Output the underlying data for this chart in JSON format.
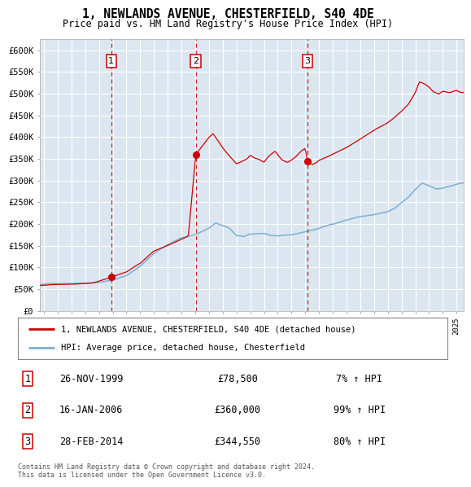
{
  "title": "1, NEWLANDS AVENUE, CHESTERFIELD, S40 4DE",
  "subtitle": "Price paid vs. HM Land Registry's House Price Index (HPI)",
  "ylabel_ticks": [
    "£0",
    "£50K",
    "£100K",
    "£150K",
    "£200K",
    "£250K",
    "£300K",
    "£350K",
    "£400K",
    "£450K",
    "£500K",
    "£550K",
    "£600K"
  ],
  "ytick_values": [
    0,
    50000,
    100000,
    150000,
    200000,
    250000,
    300000,
    350000,
    400000,
    450000,
    500000,
    550000,
    600000
  ],
  "ylim": [
    0,
    625000
  ],
  "xlim_start": 1994.7,
  "xlim_end": 2025.5,
  "plot_bg_color": "#dce6f1",
  "grid_color": "#ffffff",
  "hpi_line_color": "#7bafd4",
  "price_line_color": "#cc0000",
  "vline_color": "#cc0000",
  "marker_color": "#cc0000",
  "purchases": [
    {
      "date_num": 1999.9,
      "price": 78500,
      "label": "1"
    },
    {
      "date_num": 2006.04,
      "price": 360000,
      "label": "2"
    },
    {
      "date_num": 2014.16,
      "price": 344550,
      "label": "3"
    }
  ],
  "legend_line1": "1, NEWLANDS AVENUE, CHESTERFIELD, S40 4DE (detached house)",
  "legend_line2": "HPI: Average price, detached house, Chesterfield",
  "footnote": "Contains HM Land Registry data © Crown copyright and database right 2024.\nThis data is licensed under the Open Government Licence v3.0.",
  "table_rows": [
    [
      "1",
      "26-NOV-1999",
      "£78,500",
      "7% ↑ HPI"
    ],
    [
      "2",
      "16-JAN-2006",
      "£360,000",
      "99% ↑ HPI"
    ],
    [
      "3",
      "28-FEB-2014",
      "£344,550",
      "80% ↑ HPI"
    ]
  ]
}
